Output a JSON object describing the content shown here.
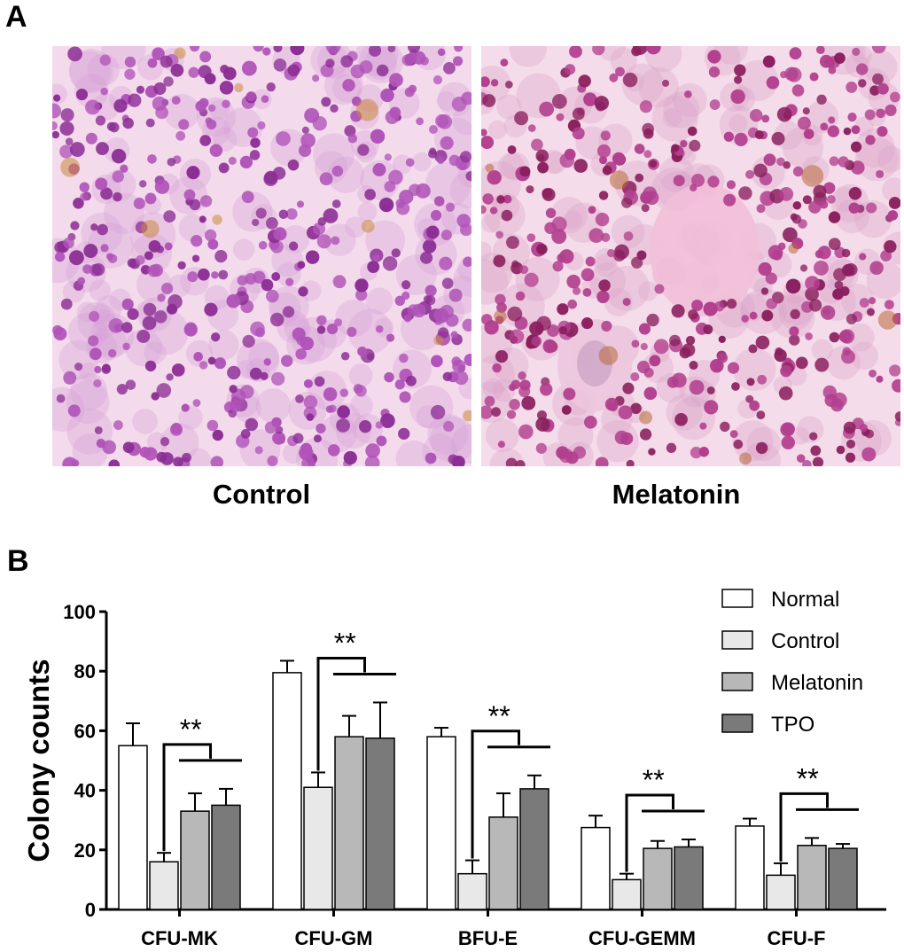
{
  "figure": {
    "panel_a_letter": "A",
    "panel_b_letter": "B",
    "photos": [
      {
        "label": "Control",
        "palette": {
          "bg": "#f3dbec",
          "cell": "#b053b8",
          "dark": "#8c2e95",
          "light": "#d8a0d6",
          "brown": "#c98a3c"
        }
      },
      {
        "label": "Melatonin",
        "palette": {
          "bg": "#f4dcea",
          "cell": "#b23f8e",
          "dark": "#8a1f5e",
          "light": "#d9a3c8",
          "brown": "#b86a3a"
        }
      }
    ]
  },
  "chart_data": {
    "type": "bar",
    "categories": [
      "CFU-MK",
      "CFU-GM",
      "BFU-E",
      "CFU-GEMM",
      "CFU-F"
    ],
    "ylabel": "Colony counts",
    "ylim": [
      0,
      100
    ],
    "yticks": [
      0,
      20,
      40,
      60,
      80,
      100
    ],
    "legend_position": "top-right",
    "significance_label": "**",
    "series": [
      {
        "name": "Normal",
        "color": "#ffffff",
        "values": [
          55,
          79.5,
          58,
          27.5,
          28
        ],
        "errors": [
          7.5,
          4,
          3,
          4,
          2.5
        ]
      },
      {
        "name": "Control",
        "color": "#e8e8e8",
        "values": [
          16,
          41,
          12,
          10,
          11.5
        ],
        "errors": [
          3,
          5,
          4.5,
          2,
          4
        ]
      },
      {
        "name": "Melatonin",
        "color": "#b8b8b8",
        "values": [
          33,
          58,
          31,
          20.5,
          21.5
        ],
        "errors": [
          6,
          7,
          8,
          2.5,
          2.5
        ]
      },
      {
        "name": "TPO",
        "color": "#7a7a7a",
        "values": [
          35,
          57.5,
          40.5,
          21,
          20.5
        ],
        "errors": [
          5.5,
          12,
          4.5,
          2.5,
          1.5
        ]
      }
    ]
  }
}
